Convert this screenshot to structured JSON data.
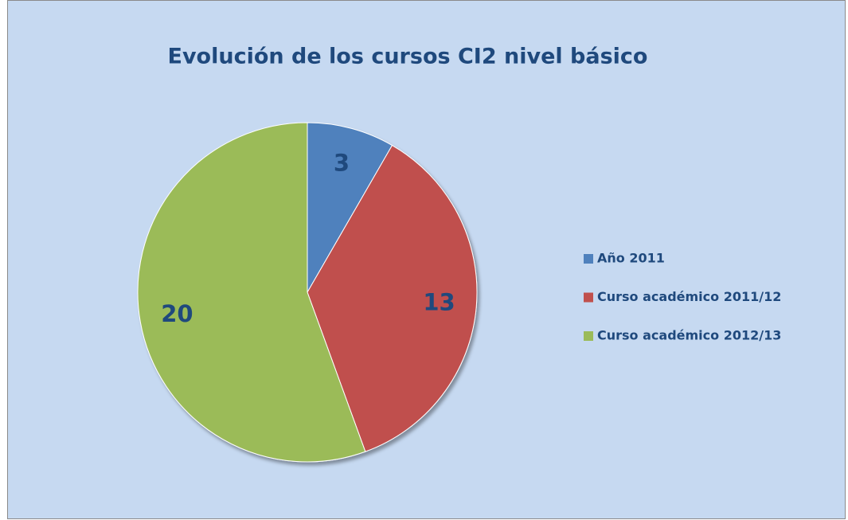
{
  "chart_data": {
    "type": "pie",
    "title": "Evolución de los cursos CI2 nivel básico",
    "categories": [
      "Año 2011",
      "Curso académico 2011/12",
      "Curso académico 2012/13"
    ],
    "values": [
      3,
      13,
      20
    ],
    "colors": [
      "#4f81bd",
      "#c0504d",
      "#9bbb59"
    ],
    "legend": "right"
  }
}
